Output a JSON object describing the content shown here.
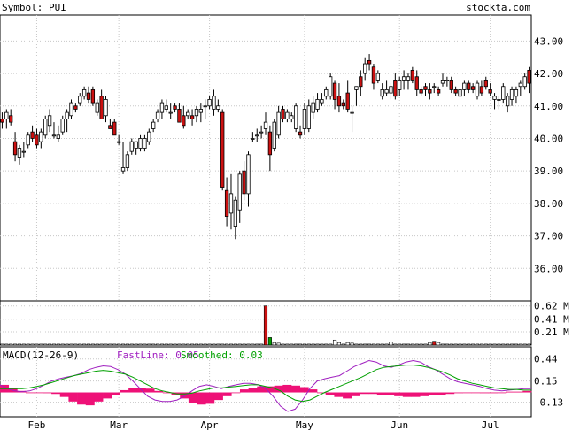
{
  "header": {
    "symbol_label": "Symbol: PUI",
    "site": "stockta.com"
  },
  "colors": {
    "up": "#ffffff",
    "down": "#cc1111",
    "outline": "#000000",
    "grid": "#c8c8c8",
    "fast": "#a020c0",
    "smoothed": "#00a000",
    "hist": "#ee1177"
  },
  "chart_data": [
    {
      "type": "candlestick",
      "title": "Symbol: PUI",
      "ylim": [
        35.0,
        43.8
      ],
      "y_ticks": [
        43.0,
        42.0,
        41.0,
        40.0,
        39.0,
        38.0,
        37.0,
        36.0
      ],
      "y_tick_labels": [
        "43.00",
        "42.00",
        "41.00",
        "40.00",
        "39.00",
        "38.00",
        "37.00",
        "36.00"
      ],
      "x_tick_labels": [
        "Feb",
        "Mar",
        "Apr",
        "May",
        "Jun",
        "Jul"
      ],
      "x_tick_index": [
        8,
        27,
        48,
        70,
        92,
        113
      ],
      "grid": true,
      "series": [
        [
          40.6,
          40.8,
          40.3,
          40.5
        ],
        [
          40.6,
          40.9,
          40.3,
          40.8
        ],
        [
          40.7,
          40.9,
          40.4,
          40.5
        ],
        [
          39.9,
          40.2,
          39.3,
          39.5
        ],
        [
          39.4,
          39.8,
          39.2,
          39.7
        ],
        [
          39.6,
          39.9,
          39.4,
          39.6
        ],
        [
          39.8,
          40.2,
          39.7,
          40.1
        ],
        [
          40.2,
          40.4,
          39.9,
          40.0
        ],
        [
          40.1,
          40.3,
          39.7,
          39.8
        ],
        [
          39.9,
          40.3,
          39.7,
          40.2
        ],
        [
          40.1,
          40.7,
          40.0,
          40.6
        ],
        [
          40.4,
          40.9,
          40.2,
          40.7
        ],
        [
          40.1,
          40.5,
          40.0,
          40.1
        ],
        [
          40.0,
          40.4,
          39.9,
          40.1
        ],
        [
          40.2,
          40.7,
          40.1,
          40.6
        ],
        [
          40.6,
          40.9,
          40.2,
          40.8
        ],
        [
          40.7,
          41.2,
          40.6,
          41.1
        ],
        [
          41.0,
          41.1,
          40.8,
          40.9
        ],
        [
          41.1,
          41.4,
          41.0,
          41.3
        ],
        [
          41.3,
          41.6,
          41.2,
          41.5
        ],
        [
          41.4,
          41.6,
          41.1,
          41.2
        ],
        [
          41.5,
          41.6,
          41.0,
          41.1
        ],
        [
          40.8,
          41.2,
          40.7,
          41.1
        ],
        [
          41.3,
          41.5,
          40.6,
          40.6
        ],
        [
          40.7,
          41.3,
          40.5,
          41.2
        ],
        [
          40.4,
          40.6,
          40.3,
          40.3
        ],
        [
          40.5,
          40.6,
          40.1,
          40.1
        ],
        [
          39.9,
          40.1,
          39.8,
          39.9
        ],
        [
          39.0,
          39.9,
          38.9,
          39.1
        ],
        [
          39.1,
          39.6,
          39.0,
          39.5
        ],
        [
          39.6,
          40.0,
          39.5,
          39.9
        ],
        [
          39.7,
          39.9,
          39.5,
          39.9
        ],
        [
          39.7,
          40.1,
          39.6,
          40.0
        ],
        [
          39.7,
          40.1,
          39.6,
          40.0
        ],
        [
          39.9,
          40.3,
          39.8,
          40.2
        ],
        [
          40.3,
          40.6,
          40.2,
          40.5
        ],
        [
          40.6,
          40.9,
          40.5,
          40.8
        ],
        [
          40.8,
          41.2,
          40.6,
          41.1
        ],
        [
          40.9,
          41.2,
          40.8,
          41.0
        ],
        [
          40.8,
          41.1,
          40.6,
          40.8
        ],
        [
          41.0,
          41.1,
          40.8,
          40.9
        ],
        [
          40.9,
          41.1,
          40.5,
          40.5
        ],
        [
          40.7,
          41.0,
          40.3,
          40.4
        ],
        [
          40.7,
          40.9,
          40.6,
          40.8
        ],
        [
          40.7,
          40.9,
          40.4,
          40.6
        ],
        [
          40.7,
          41.0,
          40.5,
          40.9
        ],
        [
          40.8,
          41.1,
          40.5,
          40.9
        ],
        [
          41.0,
          41.2,
          40.6,
          41.0
        ],
        [
          41.0,
          41.3,
          40.9,
          41.2
        ],
        [
          40.9,
          41.5,
          40.7,
          41.3
        ],
        [
          40.9,
          41.2,
          40.8,
          41.0
        ],
        [
          40.8,
          40.9,
          38.4,
          38.5
        ],
        [
          38.4,
          38.8,
          37.3,
          37.6
        ],
        [
          37.7,
          38.9,
          37.2,
          38.3
        ],
        [
          37.3,
          38.2,
          36.9,
          38.1
        ],
        [
          37.8,
          39.0,
          37.4,
          38.9
        ],
        [
          39.0,
          39.3,
          38.1,
          38.3
        ],
        [
          38.3,
          39.6,
          37.9,
          39.5
        ],
        [
          40.0,
          40.2,
          39.9,
          40.0
        ],
        [
          40.1,
          40.3,
          39.9,
          40.1
        ],
        [
          40.2,
          40.4,
          40.0,
          40.2
        ],
        [
          40.3,
          40.8,
          40.1,
          40.5
        ],
        [
          40.2,
          40.4,
          39.0,
          39.5
        ],
        [
          39.7,
          40.6,
          39.6,
          40.5
        ],
        [
          40.1,
          41.0,
          40.0,
          40.8
        ],
        [
          40.9,
          41.0,
          40.5,
          40.6
        ],
        [
          40.6,
          40.9,
          40.5,
          40.8
        ],
        [
          40.6,
          40.8,
          40.5,
          40.7
        ],
        [
          40.3,
          41.1,
          40.2,
          41.0
        ],
        [
          40.2,
          40.4,
          40.0,
          40.1
        ],
        [
          40.3,
          41.1,
          40.1,
          40.9
        ],
        [
          40.3,
          41.2,
          40.2,
          41.0
        ],
        [
          40.8,
          41.3,
          40.6,
          41.1
        ],
        [
          40.9,
          41.4,
          40.8,
          41.2
        ],
        [
          41.1,
          41.4,
          41.0,
          41.2
        ],
        [
          41.3,
          41.6,
          41.2,
          41.5
        ],
        [
          41.3,
          42.0,
          41.2,
          41.9
        ],
        [
          41.7,
          41.8,
          40.9,
          41.2
        ],
        [
          41.3,
          41.7,
          40.8,
          41.0
        ],
        [
          41.1,
          41.2,
          40.9,
          41.0
        ],
        [
          41.4,
          41.8,
          40.8,
          40.9
        ],
        [
          40.8,
          41.0,
          40.2,
          40.8
        ],
        [
          41.5,
          41.6,
          41.0,
          41.6
        ],
        [
          41.9,
          42.1,
          41.3,
          41.6
        ],
        [
          42.0,
          42.5,
          41.8,
          42.3
        ],
        [
          42.4,
          42.6,
          42.1,
          42.3
        ],
        [
          42.2,
          42.3,
          41.5,
          41.7
        ],
        [
          41.8,
          42.1,
          41.7,
          42.0
        ],
        [
          41.3,
          41.7,
          41.2,
          41.5
        ],
        [
          41.4,
          41.8,
          41.3,
          41.5
        ],
        [
          41.4,
          41.7,
          41.2,
          41.6
        ],
        [
          41.8,
          42.0,
          41.2,
          41.3
        ],
        [
          41.5,
          41.9,
          41.3,
          41.8
        ],
        [
          41.8,
          42.1,
          41.5,
          41.9
        ],
        [
          41.8,
          42.0,
          41.5,
          41.9
        ],
        [
          42.1,
          42.2,
          41.7,
          41.8
        ],
        [
          41.9,
          42.1,
          41.3,
          41.5
        ],
        [
          41.5,
          41.6,
          41.3,
          41.4
        ],
        [
          41.6,
          41.7,
          41.3,
          41.5
        ],
        [
          41.5,
          41.7,
          41.2,
          41.4
        ],
        [
          41.6,
          41.7,
          41.4,
          41.6
        ],
        [
          41.5,
          41.6,
          41.3,
          41.4
        ],
        [
          41.7,
          42.0,
          41.6,
          41.8
        ],
        [
          41.8,
          41.9,
          41.6,
          41.8
        ],
        [
          41.8,
          41.9,
          41.4,
          41.5
        ],
        [
          41.5,
          41.6,
          41.3,
          41.4
        ],
        [
          41.3,
          41.6,
          41.2,
          41.5
        ],
        [
          41.5,
          41.8,
          41.3,
          41.7
        ],
        [
          41.7,
          41.8,
          41.4,
          41.5
        ],
        [
          41.6,
          41.7,
          41.4,
          41.5
        ],
        [
          41.3,
          41.8,
          41.2,
          41.7
        ],
        [
          41.6,
          41.8,
          41.3,
          41.4
        ],
        [
          41.8,
          41.9,
          41.5,
          41.6
        ],
        [
          41.5,
          41.7,
          41.3,
          41.4
        ],
        [
          41.2,
          41.4,
          40.9,
          41.3
        ],
        [
          41.2,
          41.3,
          40.9,
          41.2
        ],
        [
          41.2,
          41.7,
          41.1,
          41.6
        ],
        [
          41.0,
          41.4,
          40.8,
          41.3
        ],
        [
          41.2,
          41.6,
          41.0,
          41.5
        ],
        [
          41.3,
          41.6,
          41.1,
          41.5
        ],
        [
          41.6,
          41.8,
          41.3,
          41.7
        ],
        [
          41.6,
          42.0,
          41.5,
          41.9
        ],
        [
          42.1,
          42.2,
          41.4,
          41.7
        ]
      ]
    },
    {
      "type": "bar",
      "title": "Volume",
      "ylim": [
        0,
        0.7
      ],
      "y_ticks": [
        0.62,
        0.41,
        0.21
      ],
      "y_tick_labels": [
        "0.62 M",
        "0.41 M",
        "0.21 M"
      ],
      "highlight_bars": [
        [
          61,
          0.62,
          "down"
        ],
        [
          62,
          0.12,
          "green"
        ],
        [
          63,
          0.04,
          "up"
        ],
        [
          64,
          0.03,
          "up"
        ],
        [
          77,
          0.08,
          "up"
        ],
        [
          78,
          0.04,
          "up"
        ],
        [
          80,
          0.04,
          "up"
        ],
        [
          81,
          0.03,
          "up"
        ],
        [
          90,
          0.05,
          "up"
        ],
        [
          99,
          0.04,
          "up"
        ],
        [
          100,
          0.06,
          "down"
        ],
        [
          101,
          0.04,
          "up"
        ],
        [
          136,
          0.03,
          "up"
        ]
      ],
      "base_volume": 0.015
    },
    {
      "type": "line",
      "title": "MACD(12-26-9)",
      "ylim": [
        -0.32,
        0.6
      ],
      "y_ticks": [
        0.44,
        0.15,
        -0.13
      ],
      "y_tick_labels": [
        "0.44",
        "0.15",
        "-0.13"
      ],
      "series": [
        {
          "name": "FastLine",
          "latest_label": "FastLine: 0.05",
          "color": "fast",
          "values": [
            0.1,
            0.05,
            0.02,
            0.01,
            0.02,
            0.05,
            0.1,
            0.15,
            0.18,
            0.2,
            0.22,
            0.25,
            0.3,
            0.33,
            0.35,
            0.34,
            0.3,
            0.24,
            0.15,
            0.05,
            -0.05,
            -0.1,
            -0.12,
            -0.12,
            -0.1,
            -0.05,
            0.02,
            0.08,
            0.1,
            0.08,
            0.05,
            0.08,
            0.1,
            0.12,
            0.12,
            0.1,
            0.05,
            -0.05,
            -0.18,
            -0.25,
            -0.22,
            -0.1,
            0.05,
            0.15,
            0.18,
            0.2,
            0.22,
            0.28,
            0.34,
            0.38,
            0.42,
            0.4,
            0.35,
            0.33,
            0.36,
            0.4,
            0.42,
            0.4,
            0.34,
            0.3,
            0.24,
            0.18,
            0.14,
            0.12,
            0.1,
            0.08,
            0.05,
            0.03,
            0.02,
            0.03,
            0.04,
            0.05,
            0.05
          ]
        },
        {
          "name": "Smoothed",
          "latest_label": "Smoothed: 0.03",
          "color": "smoothed",
          "values": [
            0.05,
            0.05,
            0.05,
            0.05,
            0.06,
            0.08,
            0.1,
            0.13,
            0.16,
            0.19,
            0.22,
            0.24,
            0.26,
            0.28,
            0.29,
            0.28,
            0.26,
            0.24,
            0.2,
            0.15,
            0.1,
            0.05,
            0.02,
            0.0,
            -0.02,
            -0.02,
            -0.01,
            0.02,
            0.04,
            0.06,
            0.06,
            0.07,
            0.08,
            0.09,
            0.1,
            0.1,
            0.08,
            0.06,
            0.02,
            -0.05,
            -0.1,
            -0.12,
            -0.1,
            -0.05,
            0.0,
            0.04,
            0.08,
            0.12,
            0.16,
            0.2,
            0.25,
            0.3,
            0.33,
            0.34,
            0.35,
            0.36,
            0.36,
            0.35,
            0.33,
            0.3,
            0.27,
            0.23,
            0.18,
            0.15,
            0.12,
            0.1,
            0.08,
            0.06,
            0.05,
            0.04,
            0.04,
            0.03,
            0.03
          ]
        }
      ],
      "histogram": [
        0.1,
        0.06,
        0.02,
        0.0,
        0.0,
        -0.01,
        -0.02,
        -0.06,
        -0.12,
        -0.16,
        -0.17,
        -0.12,
        -0.08,
        -0.03,
        0.03,
        0.06,
        0.06,
        0.05,
        0.02,
        -0.01,
        -0.04,
        -0.08,
        -0.14,
        -0.16,
        -0.15,
        -0.1,
        -0.05,
        0.0,
        0.04,
        0.06,
        0.08,
        0.08,
        0.09,
        0.1,
        0.09,
        0.07,
        0.04,
        0.0,
        -0.04,
        -0.06,
        -0.08,
        -0.05,
        -0.02,
        -0.02,
        -0.03,
        -0.04,
        -0.05,
        -0.06,
        -0.06,
        -0.05,
        -0.04,
        -0.03,
        -0.02,
        -0.01,
        0.0,
        0.0,
        -0.01,
        -0.01,
        0.0,
        0.01,
        0.01,
        0.02
      ]
    }
  ]
}
